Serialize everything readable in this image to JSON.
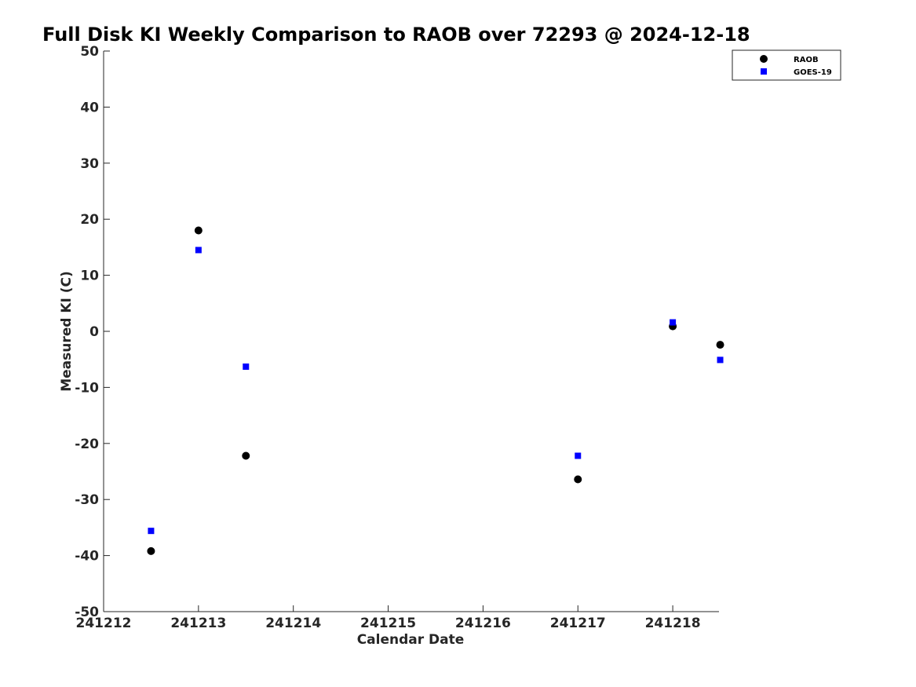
{
  "chart_data": {
    "type": "scatter",
    "title": "Full Disk KI Weekly Comparison to RAOB over 72293 @ 2024-12-18",
    "xlabel": "Calendar Date",
    "ylabel": "Measured KI (C)",
    "x_ticks": [
      "241212",
      "241213",
      "241214",
      "241215",
      "241216",
      "241217",
      "241218"
    ],
    "y_ticks": [
      50,
      40,
      30,
      20,
      10,
      0,
      -10,
      -20,
      -30,
      -40,
      -50
    ],
    "ylim": [
      -50,
      50
    ],
    "grid": false,
    "legend_position": "top-right",
    "series": [
      {
        "name": "RAOB",
        "marker": "circle",
        "color": "#000000",
        "points": [
          {
            "x": "241212 12Z",
            "y": -39.2
          },
          {
            "x": "241213 00Z",
            "y": 18.0
          },
          {
            "x": "241213 12Z",
            "y": -22.2
          },
          {
            "x": "241217 00Z",
            "y": -26.4
          },
          {
            "x": "241218 00Z",
            "y": 0.9
          },
          {
            "x": "241218 12Z",
            "y": -2.4
          }
        ]
      },
      {
        "name": "GOES-19",
        "marker": "square",
        "color": "#0000ff",
        "points": [
          {
            "x": "241212 12Z",
            "y": -35.6
          },
          {
            "x": "241213 00Z",
            "y": 14.5
          },
          {
            "x": "241213 12Z",
            "y": -6.3
          },
          {
            "x": "241217 00Z",
            "y": -22.2
          },
          {
            "x": "241218 00Z",
            "y": 1.6
          },
          {
            "x": "241218 12Z",
            "y": -5.1
          }
        ]
      }
    ]
  }
}
